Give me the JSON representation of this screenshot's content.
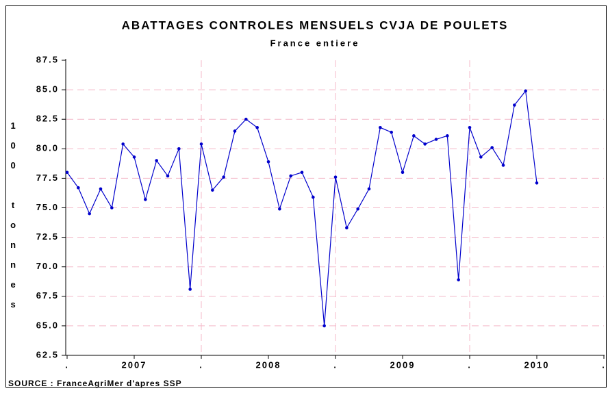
{
  "chart_data": {
    "type": "line",
    "title": "ABATTAGES CONTROLES MENSUELS CVJA DE POULETS",
    "subtitle": "France entiere",
    "y_label": "100 tonnes",
    "source": "SOURCE : FranceAgriMer d'apres SSP",
    "x": [
      0,
      1,
      2,
      3,
      4,
      5,
      6,
      7,
      8,
      9,
      10,
      11,
      12,
      13,
      14,
      15,
      16,
      17,
      18,
      19,
      20,
      21,
      22,
      23,
      24,
      25,
      26,
      27,
      28,
      29,
      30,
      31,
      32,
      33,
      34,
      35,
      36,
      37,
      38,
      39,
      40,
      41,
      42
    ],
    "series": [
      {
        "color": "#0000cc",
        "values": [
          78.0,
          76.7,
          74.5,
          76.6,
          75.0,
          80.4,
          79.3,
          75.7,
          79.0,
          77.7,
          80.0,
          68.1,
          80.4,
          76.5,
          77.6,
          81.5,
          82.5,
          81.8,
          78.9,
          74.9,
          77.7,
          78.0,
          75.9,
          65.0,
          77.6,
          73.3,
          74.9,
          76.6,
          81.8,
          81.4,
          78.0,
          81.1,
          80.4,
          80.8,
          81.1,
          68.9,
          81.8,
          79.3,
          80.1,
          78.6,
          83.7,
          84.9,
          77.1
        ]
      }
    ],
    "xlim": [
      0,
      48
    ],
    "xticks": [
      {
        "value": 0,
        "label": "."
      },
      {
        "value": 6,
        "label": "2007"
      },
      {
        "value": 12,
        "label": "."
      },
      {
        "value": 18,
        "label": "2008"
      },
      {
        "value": 24,
        "label": "."
      },
      {
        "value": 30,
        "label": "2009"
      },
      {
        "value": 36,
        "label": "."
      },
      {
        "value": 42,
        "label": "2010"
      },
      {
        "value": 48,
        "label": "."
      }
    ],
    "ylim": [
      62.5,
      87.5
    ],
    "yticks": [
      62.5,
      {
        "value": 65,
        "label": "65.0"
      },
      67.5,
      {
        "value": 70,
        "label": "70.0"
      },
      72.5,
      {
        "value": 75,
        "label": "75.0"
      },
      77.5,
      {
        "value": 80,
        "label": "80.0"
      },
      82.5,
      {
        "value": 85,
        "label": "85.0"
      },
      87.5
    ],
    "grid": true,
    "grid_color": "#f4b8c8"
  }
}
